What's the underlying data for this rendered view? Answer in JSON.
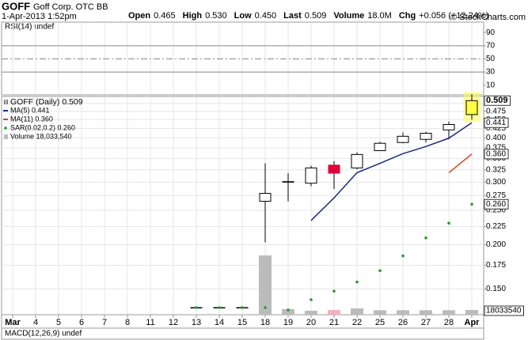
{
  "header": {
    "symbol": "GOFF",
    "name": "Goff Corp. OTC BB",
    "timestamp": "1-Apr-2013 1:52pm",
    "source": "© StockCharts.com",
    "quote": [
      {
        "label": "Open",
        "value": "0.465"
      },
      {
        "label": "High",
        "value": "0.530"
      },
      {
        "label": "Low",
        "value": "0.450"
      },
      {
        "label": "Last",
        "value": "0.509"
      },
      {
        "label": "Volume",
        "value": "18.0M"
      },
      {
        "label": "Chg",
        "value": "+0.056 (+12.24%)"
      }
    ]
  },
  "chart_data": [
    {
      "type": "line",
      "title": "RSI(14) undef",
      "ylim": [
        0,
        100
      ],
      "yticks": [
        10,
        30,
        50,
        70,
        90
      ],
      "reference_lines": [
        30,
        50,
        70
      ],
      "grid": true
    },
    {
      "type": "candlestick",
      "log_scale": true,
      "grid": true,
      "categories": [
        "Mar",
        "4",
        "5",
        "6",
        "7",
        "8",
        "11",
        "12",
        "13",
        "14",
        "15",
        "18",
        "19",
        "20",
        "21",
        "22",
        "25",
        "26",
        "27",
        "28",
        "Apr"
      ],
      "ylim": [
        0.127,
        0.515
      ],
      "yticks": [
        {
          "value": 0.15,
          "label": "0.150"
        },
        {
          "value": 0.175,
          "label": "0.175"
        },
        {
          "value": 0.2,
          "label": "0.200"
        },
        {
          "value": 0.225,
          "label": "0.225"
        },
        {
          "value": 0.25,
          "label": "0.250"
        },
        {
          "value": 0.275,
          "label": "0.275"
        },
        {
          "value": 0.3,
          "label": "0.300"
        },
        {
          "value": 0.325,
          "label": "0.325"
        },
        {
          "value": 0.35,
          "label": "0.350"
        },
        {
          "value": 0.375,
          "label": "0.375"
        },
        {
          "value": 0.4,
          "label": "0.400"
        },
        {
          "value": 0.425,
          "label": "0.425"
        },
        {
          "value": 0.45,
          "label": "0.450"
        },
        {
          "value": 0.475,
          "label": "0.475"
        },
        {
          "value": 0.5,
          "label": "0.500"
        }
      ],
      "y2lim": [
        0,
        820000000
      ],
      "series": [
        {
          "name": "GOFF (Daily) 0.509",
          "type": "candle",
          "color": "#000000",
          "up_color": "#ffffff",
          "down_color": "#e0003c",
          "last_color": "#ffff44",
          "open": [
            null,
            null,
            null,
            null,
            null,
            null,
            null,
            null,
            0.133,
            0.133,
            0.133,
            0.265,
            0.3,
            0.298,
            0.335,
            0.329,
            0.368,
            0.388,
            0.396,
            0.421,
            0.465
          ],
          "high": [
            null,
            null,
            null,
            null,
            null,
            null,
            null,
            null,
            0.133,
            0.133,
            0.133,
            0.339,
            0.318,
            0.334,
            0.344,
            0.364,
            0.39,
            0.414,
            0.416,
            0.444,
            0.53
          ],
          "low": [
            null,
            null,
            null,
            null,
            null,
            null,
            null,
            null,
            0.133,
            0.133,
            0.133,
            0.203,
            0.265,
            0.292,
            0.287,
            0.326,
            0.368,
            0.386,
            0.388,
            0.396,
            0.45
          ],
          "close": [
            null,
            null,
            null,
            null,
            null,
            null,
            null,
            null,
            0.133,
            0.133,
            0.133,
            0.279,
            0.301,
            0.329,
            0.318,
            0.359,
            0.386,
            0.404,
            0.412,
            0.436,
            0.509
          ]
        },
        {
          "name": "MA(5) 0.441",
          "type": "line",
          "color": "#1c2a80",
          "values": [
            null,
            null,
            null,
            null,
            null,
            null,
            null,
            null,
            null,
            null,
            null,
            null,
            null,
            0.234,
            0.271,
            0.319,
            0.339,
            0.361,
            0.378,
            0.399,
            0.441
          ]
        },
        {
          "name": "MA(11) 0.360",
          "type": "line",
          "color": "#e0401c",
          "last_label": "0.360",
          "values": [
            null,
            null,
            null,
            null,
            null,
            null,
            null,
            null,
            null,
            null,
            null,
            null,
            null,
            null,
            null,
            null,
            null,
            null,
            null,
            0.319,
            0.36
          ]
        },
        {
          "name": "SAR(0.02,0.2) 0.260",
          "type": "dots",
          "color": "#2a9a2a",
          "last_label": "0.260",
          "values": [
            null,
            null,
            null,
            null,
            null,
            null,
            null,
            null,
            0.133,
            0.133,
            0.133,
            0.133,
            0.131,
            0.14,
            0.148,
            0.157,
            0.169,
            0.186,
            0.209,
            0.23,
            0.26
          ]
        },
        {
          "name": "Volume 18,033,540",
          "type": "bar",
          "axis": "y2",
          "color": "#bbbbbb",
          "down_color": "#f2b4bc",
          "values": [
            null,
            null,
            null,
            null,
            null,
            null,
            null,
            null,
            2000000,
            2000000,
            2000000,
            225000000,
            21000000,
            15000000,
            18000000,
            24000000,
            17000000,
            17000000,
            17000000,
            17000000,
            18033540
          ]
        }
      ]
    },
    {
      "type": "line",
      "title": "MACD(12,26,9) undef"
    }
  ]
}
